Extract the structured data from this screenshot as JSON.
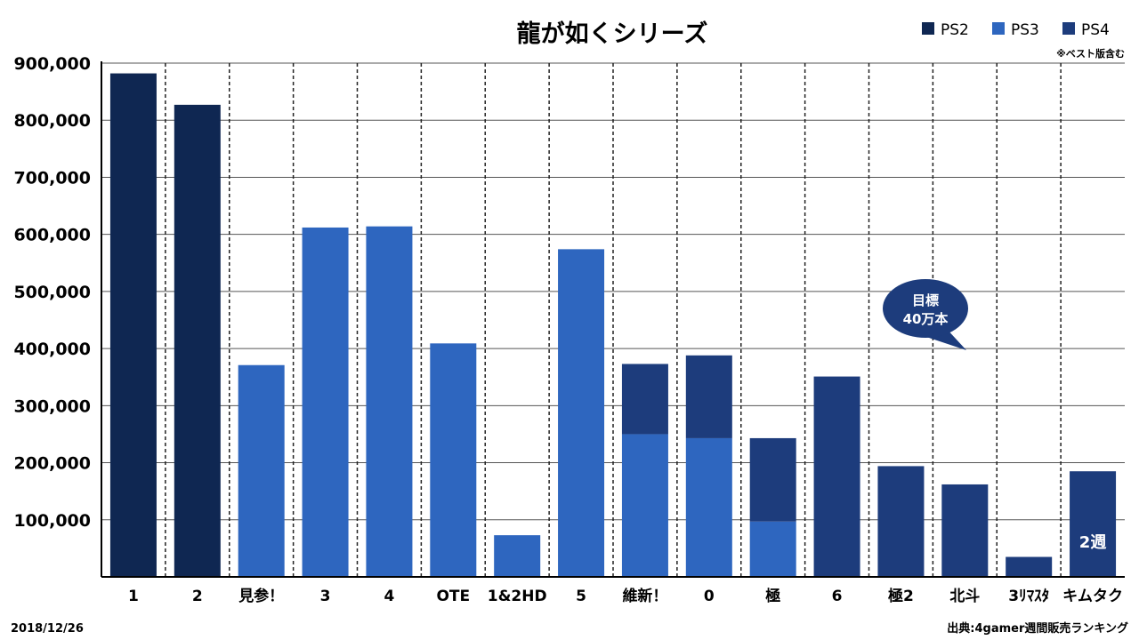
{
  "chart_data": {
    "type": "bar",
    "title": "龍が如くシリーズ",
    "categories": [
      "1",
      "2",
      "見参！",
      "3",
      "4",
      "OTE",
      "1&2HD",
      "5",
      "維新！",
      "0",
      "極",
      "6",
      "極2",
      "北斗",
      "3ﾘﾏｽﾀ",
      "キムタク"
    ],
    "series": [
      {
        "name": "PS2",
        "color": "#0f2752",
        "values": [
          882000,
          827000,
          0,
          0,
          0,
          0,
          0,
          0,
          0,
          0,
          0,
          0,
          0,
          0,
          0,
          0
        ]
      },
      {
        "name": "PS3",
        "color": "#2e66bf",
        "values": [
          0,
          0,
          371000,
          612000,
          614000,
          409000,
          73000,
          574000,
          250000,
          243000,
          97000,
          0,
          0,
          0,
          0,
          0
        ]
      },
      {
        "name": "PS4",
        "color": "#1d3c7c",
        "values": [
          0,
          0,
          0,
          0,
          0,
          0,
          0,
          0,
          123000,
          145000,
          146000,
          351000,
          194000,
          162000,
          35000,
          185000
        ]
      }
    ],
    "stacked": true,
    "ylim": [
      0,
      900000
    ],
    "yticks": [
      "100,000",
      "200,000",
      "300,000",
      "400,000",
      "500,000",
      "600,000",
      "700,000",
      "800,000",
      "900,000"
    ],
    "legend_position": "top-right",
    "grid": true,
    "legend_note": "※ベスト版含む",
    "annotations": [
      {
        "text_lines": [
          "目標",
          "40万本"
        ],
        "target_value": 400000,
        "style": "speech-bubble"
      },
      {
        "text": "2週",
        "category": "キムタク"
      }
    ]
  },
  "footer": {
    "date": "2018/12/26",
    "source": "出典:4gamer週間販売ランキング"
  }
}
